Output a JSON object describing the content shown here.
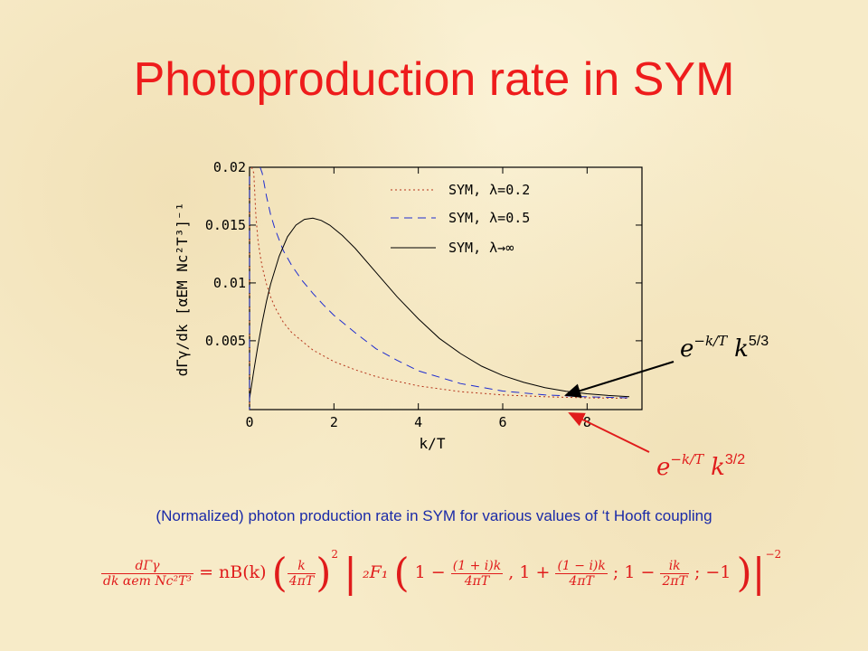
{
  "slide": {
    "title": "Photoproduction rate in SYM",
    "caption": "(Normalized) photon production rate in SYM for various values of ‘t Hooft coupling"
  },
  "annotations": {
    "black_arrow_label": "e^{-k/T} k^{5/3}",
    "black_arrow_base": "e",
    "black_arrow_exp": "−k/T",
    "black_arrow_k": "k",
    "black_arrow_pow": "5/3",
    "red_arrow_label": "e^{-k/T} k^{3/2}",
    "red_arrow_base": "e",
    "red_arrow_exp": "−k/T",
    "red_arrow_k": "k",
    "red_arrow_pow": "3/2"
  },
  "formula": {
    "lhs_num": "dΓγ",
    "lhs_den": "dk αem Nc²T³",
    "equals_nb": "= nB(k)",
    "k_num": "k",
    "k_den": "4πT",
    "hyper": "₂F₁",
    "arg1_a": "1 −",
    "arg1_num": "(1 + i)k",
    "arg1_den": "4πT",
    "arg2_a": ", 1 +",
    "arg2_num": "(1 − i)k",
    "arg2_den": "4πT",
    "arg3_a": "; 1 −",
    "arg3_num": "ik",
    "arg3_den": "2πT",
    "arg4": "; −1",
    "exp_outer": "−2",
    "exp_inner": "2"
  },
  "chart_data": {
    "type": "line",
    "xlabel": "k/T",
    "ylabel": "dΓγ/dk [αEM Nc²T³]⁻¹",
    "xlim": [
      0,
      9.3
    ],
    "ylim": [
      -0.00095,
      0.02
    ],
    "xticks": [
      0,
      2,
      4,
      6,
      8
    ],
    "xtick_labels": [
      "0",
      "2",
      "4",
      "6",
      "8"
    ],
    "yticks": [
      0.005,
      0.01,
      0.015,
      0.02
    ],
    "ytick_labels": [
      "0.005",
      "0.01",
      "0.015",
      "0.02"
    ],
    "grid": false,
    "legend_position": "top-right",
    "series": [
      {
        "name": "SYM, λ=0.2",
        "style": "dotted",
        "color": "#b5331a",
        "x": [
          0.05,
          0.1,
          0.15,
          0.2,
          0.25,
          0.3,
          0.4,
          0.5,
          0.6,
          0.8,
          1.0,
          1.5,
          2.0,
          2.5,
          3.0,
          3.5,
          4.0,
          5.0,
          6.0,
          7.0,
          8.0,
          9.0
        ],
        "y": [
          0.02,
          0.0195,
          0.0158,
          0.0137,
          0.0124,
          0.0114,
          0.0099,
          0.0088,
          0.0079,
          0.0066,
          0.0057,
          0.0042,
          0.0032,
          0.0025,
          0.0019,
          0.0015,
          0.0011,
          0.0006,
          0.00032,
          0.00016,
          7e-05,
          3e-05
        ]
      },
      {
        "name": "SYM, λ=0.5",
        "style": "dashed",
        "color": "#1e2cd0",
        "x": [
          0.25,
          0.3,
          0.4,
          0.5,
          0.6,
          0.8,
          1.0,
          1.25,
          1.5,
          1.75,
          2.0,
          2.5,
          3.0,
          3.5,
          4.0,
          5.0,
          6.0,
          7.0,
          8.0,
          9.0
        ],
        "y": [
          0.02,
          0.0195,
          0.0175,
          0.0159,
          0.0147,
          0.0128,
          0.0115,
          0.0102,
          0.0091,
          0.0081,
          0.0072,
          0.0057,
          0.0043,
          0.0033,
          0.0024,
          0.0013,
          0.00065,
          0.00032,
          0.00015,
          7e-05
        ]
      },
      {
        "name": "SYM, λ→∞",
        "style": "solid",
        "color": "#000000",
        "x": [
          0.0,
          0.1,
          0.2,
          0.3,
          0.4,
          0.5,
          0.7,
          0.9,
          1.1,
          1.3,
          1.5,
          1.7,
          1.9,
          2.2,
          2.5,
          3.0,
          3.5,
          4.0,
          4.5,
          5.0,
          5.5,
          6.0,
          6.5,
          7.0,
          7.5,
          8.0,
          8.5,
          9.0
        ],
        "y": [
          0.0,
          0.0024,
          0.0046,
          0.0066,
          0.0084,
          0.0099,
          0.0123,
          0.014,
          0.015,
          0.0155,
          0.0156,
          0.0154,
          0.015,
          0.0141,
          0.013,
          0.0109,
          0.0088,
          0.0069,
          0.0052,
          0.0039,
          0.0028,
          0.002,
          0.0014,
          0.00095,
          0.00064,
          0.00042,
          0.00027,
          0.00017
        ]
      }
    ]
  },
  "colors": {
    "title": "#ee1c1c",
    "caption": "#1a2aa8",
    "formula": "#e01b1b",
    "black_arrow": "#000000",
    "red_arrow": "#e01b1b"
  }
}
